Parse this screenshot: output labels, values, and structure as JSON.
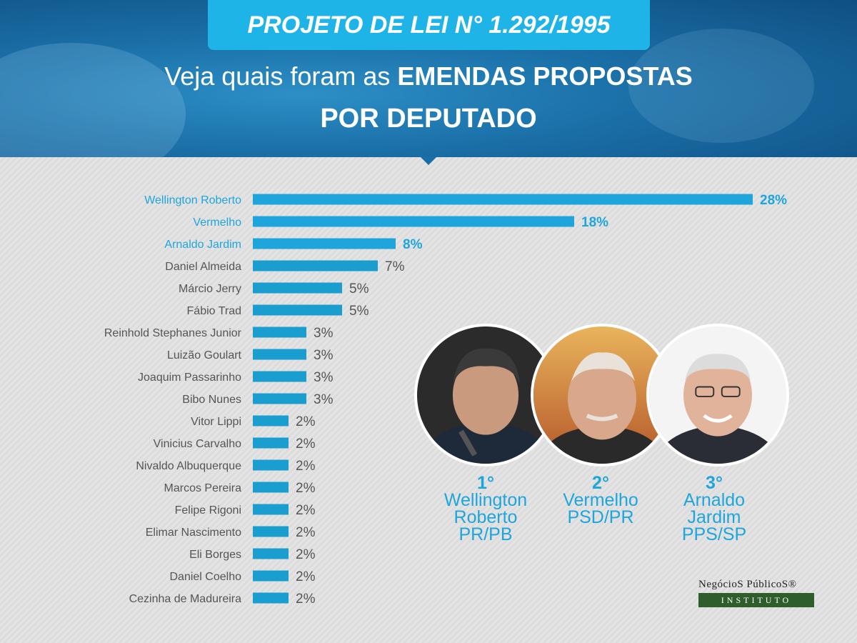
{
  "header": {
    "title": "PROJETO DE LEI N° 1.292/1995",
    "subtitle_light": "Veja quais foram as ",
    "subtitle_bold": "EMENDAS PROPOSTAS",
    "subtitle_line2": "POR DEPUTADO"
  },
  "colors": {
    "bar": "#1a9ed0",
    "highlight": "#1ea6dc",
    "label": "#555555",
    "header_bg": "#1a6ea6",
    "title_box": "#1eb4e8"
  },
  "chart_data": {
    "type": "bar",
    "orientation": "horizontal",
    "unit": "%",
    "categories": [
      "Wellington Roberto",
      "Vermelho",
      "Arnaldo Jardim",
      "Daniel Almeida",
      "Márcio Jerry",
      "Fábio Trad",
      "Reinhold Stephanes Junior",
      "Luizão Goulart",
      "Joaquim Passarinho",
      "Bibo Nunes",
      "Vitor Lippi",
      "Vinicius Carvalho",
      "Nivaldo Albuquerque",
      "Marcos Pereira",
      "Felipe Rigoni",
      "Elimar Nascimento",
      "Eli Borges",
      "Daniel Coelho",
      "Cezinha de Madureira"
    ],
    "values": [
      28,
      18,
      8,
      7,
      5,
      5,
      3,
      3,
      3,
      3,
      2,
      2,
      2,
      2,
      2,
      2,
      2,
      2,
      2
    ],
    "value_labels": [
      "28%",
      "18%",
      "8%",
      "7%",
      "5%",
      "5%",
      "3%",
      "3%",
      "3%",
      "3%",
      "2%",
      "2%",
      "2%",
      "2%",
      "2%",
      "2%",
      "2%",
      "2%",
      "2%"
    ],
    "highlighted": [
      0,
      1,
      2
    ],
    "xlim": [
      0,
      28
    ],
    "grid": false,
    "legend": "none"
  },
  "top3": [
    {
      "position": "1°",
      "name_line1": "Wellington",
      "name_line2": "Roberto",
      "party": "PR/PB"
    },
    {
      "position": "2°",
      "name_line1": "Vermelho",
      "name_line2": "",
      "party": "PSD/PR"
    },
    {
      "position": "3°",
      "name_line1": "Arnaldo",
      "name_line2": "Jardim",
      "party": "PPS/SP"
    }
  ],
  "logo": {
    "top": "NegócioS PúblicoS®",
    "bottom": "INSTITUTO"
  }
}
